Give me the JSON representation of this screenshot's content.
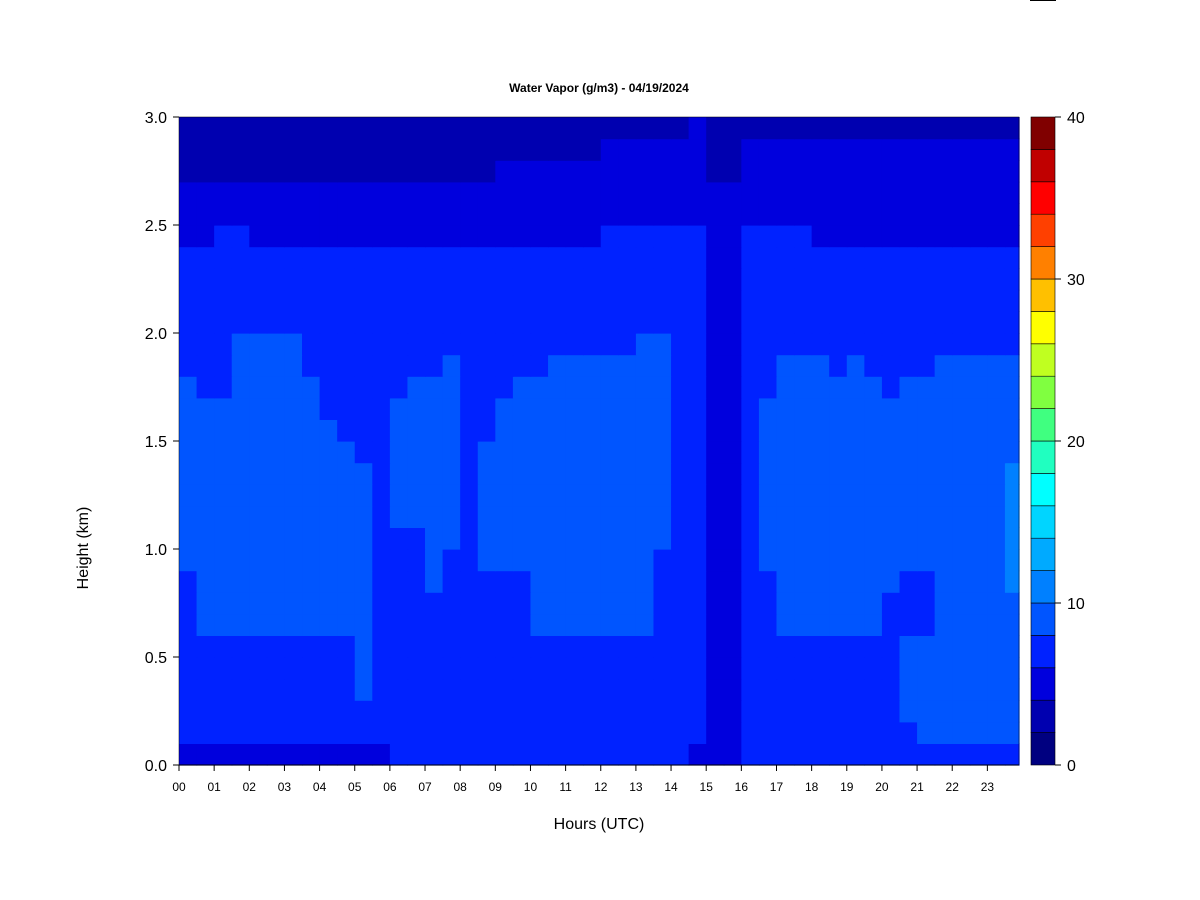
{
  "chart_data": {
    "type": "heatmap",
    "title": "Water Vapor (g/m3) - 04/19/2024",
    "xlabel": "Hours (UTC)",
    "ylabel": "Height (km)",
    "x_ticks": [
      "00",
      "01",
      "02",
      "03",
      "04",
      "05",
      "06",
      "07",
      "08",
      "09",
      "10",
      "11",
      "12",
      "13",
      "14",
      "15",
      "16",
      "17",
      "18",
      "19",
      "20",
      "21",
      "22",
      "23"
    ],
    "xlim": [
      0,
      23.9
    ],
    "y_ticks": [
      "0.0",
      "0.5",
      "1.0",
      "1.5",
      "2.0",
      "2.5",
      "3.0"
    ],
    "ylim": [
      0,
      3.0
    ],
    "colorbar": {
      "min": 0,
      "max": 40,
      "step": 2,
      "tick_labels": [
        "0",
        "10",
        "20",
        "30",
        "40"
      ],
      "colors": [
        "#000080",
        "#0000B0",
        "#0000DD",
        "#0022FF",
        "#0055FF",
        "#0080FF",
        "#00AAFF",
        "#00D5FF",
        "#00FFFF",
        "#20FFC0",
        "#40FF80",
        "#80FF40",
        "#C0FF20",
        "#FFFF00",
        "#FFC000",
        "#FF8000",
        "#FF4000",
        "#FF0000",
        "#C00000",
        "#800000"
      ]
    },
    "grid": false,
    "height_levels_km": [
      0.05,
      0.15,
      0.25,
      0.35,
      0.45,
      0.55,
      0.65,
      0.75,
      0.85,
      0.95,
      1.05,
      1.15,
      1.25,
      1.35,
      1.45,
      1.55,
      1.65,
      1.75,
      1.85,
      1.95,
      2.05,
      2.15,
      2.25,
      2.35,
      2.45,
      2.55,
      2.65,
      2.75,
      2.85,
      2.95
    ],
    "hours_utc": [
      0.25,
      0.75,
      1.25,
      1.75,
      2.25,
      2.75,
      3.25,
      3.75,
      4.25,
      4.75,
      5.25,
      5.75,
      6.25,
      6.75,
      7.25,
      7.75,
      8.25,
      8.75,
      9.25,
      9.75,
      10.25,
      10.75,
      11.25,
      11.75,
      12.25,
      12.75,
      13.25,
      13.75,
      14.25,
      14.75,
      15.25,
      15.75,
      16.25,
      16.75,
      17.25,
      17.75,
      18.25,
      18.75,
      19.25,
      19.75,
      20.25,
      20.75,
      21.25,
      21.75,
      22.25,
      22.75,
      23.25,
      23.75
    ],
    "values_by_height": [
      [
        5,
        5,
        5,
        5,
        5,
        5,
        5,
        5,
        5,
        5,
        5,
        5,
        6,
        6,
        6,
        6,
        6,
        6,
        6,
        6,
        6,
        6,
        6,
        6,
        6,
        6,
        6,
        6,
        6,
        5,
        5,
        5,
        6,
        6,
        6,
        6,
        6,
        6,
        6,
        6,
        6,
        6,
        6,
        6,
        6,
        6,
        6,
        6
      ],
      [
        7,
        7,
        7,
        7,
        7,
        7,
        7,
        7,
        7,
        7,
        7,
        7,
        7,
        7,
        7,
        7,
        7,
        7,
        7,
        7,
        7,
        7,
        7,
        7,
        7,
        7,
        7,
        7,
        7,
        6,
        5,
        5,
        7,
        7,
        7,
        7,
        7,
        7,
        7,
        7,
        7,
        7,
        9,
        9,
        9,
        9,
        9,
        9
      ],
      [
        7,
        7,
        7,
        7,
        7,
        7,
        7,
        7,
        7,
        7,
        7,
        7,
        7,
        7,
        7,
        7,
        7,
        7,
        7,
        7,
        7,
        7,
        7,
        7,
        7,
        7,
        7,
        7,
        7,
        6,
        5,
        5,
        7,
        7,
        7,
        7,
        7,
        7,
        7,
        7,
        7,
        9,
        9,
        9,
        9,
        9,
        9,
        9
      ],
      [
        7,
        7,
        7,
        7,
        7,
        7,
        7,
        7,
        7,
        7,
        9,
        7,
        7,
        7,
        7,
        7,
        7,
        7,
        7,
        7,
        7,
        7,
        7,
        7,
        7,
        7,
        7,
        7,
        7,
        6,
        5,
        5,
        7,
        7,
        7,
        7,
        7,
        7,
        7,
        7,
        7,
        9,
        9,
        9,
        9,
        9,
        9,
        9
      ],
      [
        7,
        7,
        7,
        7,
        7,
        7,
        7,
        7,
        7,
        7,
        9,
        7,
        7,
        7,
        7,
        7,
        7,
        7,
        7,
        7,
        7,
        7,
        7,
        7,
        7,
        7,
        7,
        7,
        7,
        6,
        5,
        5,
        7,
        7,
        7,
        7,
        7,
        7,
        7,
        7,
        7,
        9,
        9,
        9,
        9,
        9,
        9,
        9
      ],
      [
        7,
        7,
        7,
        7,
        7,
        7,
        7,
        7,
        7,
        7,
        9,
        7,
        7,
        7,
        7,
        7,
        7,
        7,
        7,
        7,
        7,
        7,
        7,
        7,
        7,
        7,
        7,
        7,
        7,
        6,
        5,
        5,
        7,
        7,
        7,
        7,
        7,
        7,
        7,
        7,
        7,
        9,
        9,
        9,
        9,
        9,
        9,
        9
      ],
      [
        7,
        9,
        9,
        9,
        9,
        9,
        9,
        9,
        9,
        9,
        9,
        7,
        7,
        7,
        7,
        7,
        7,
        7,
        7,
        7,
        9,
        9,
        9,
        9,
        9,
        9,
        9,
        7,
        7,
        6,
        5,
        5,
        7,
        7,
        9,
        9,
        9,
        9,
        9,
        9,
        7,
        7,
        7,
        9,
        9,
        9,
        9,
        9
      ],
      [
        7,
        9,
        9,
        9,
        9,
        9,
        9,
        9,
        9,
        9,
        9,
        7,
        7,
        7,
        7,
        7,
        7,
        7,
        7,
        7,
        9,
        9,
        9,
        9,
        9,
        9,
        9,
        7,
        7,
        6,
        5,
        5,
        7,
        7,
        9,
        9,
        9,
        9,
        9,
        9,
        7,
        7,
        7,
        9,
        9,
        9,
        9,
        9
      ],
      [
        7,
        9,
        9,
        9,
        9,
        9,
        9,
        9,
        9,
        9,
        9,
        7,
        7,
        7,
        9,
        7,
        7,
        7,
        7,
        7,
        9,
        9,
        9,
        9,
        9,
        9,
        9,
        7,
        7,
        6,
        5,
        5,
        7,
        7,
        9,
        9,
        9,
        9,
        9,
        9,
        9,
        7,
        7,
        9,
        9,
        9,
        9,
        10
      ],
      [
        9,
        9,
        9,
        9,
        9,
        9,
        9,
        9,
        9,
        9,
        9,
        7,
        7,
        7,
        9,
        7,
        7,
        9,
        9,
        9,
        9,
        9,
        9,
        9,
        9,
        9,
        9,
        7,
        7,
        6,
        5,
        5,
        7,
        9,
        9,
        9,
        9,
        9,
        9,
        9,
        9,
        9,
        9,
        9,
        9,
        9,
        9,
        10
      ],
      [
        9,
        9,
        9,
        9,
        9,
        9,
        9,
        9,
        9,
        9,
        9,
        7,
        7,
        7,
        9,
        9,
        7,
        9,
        9,
        9,
        9,
        9,
        9,
        9,
        9,
        9,
        9,
        9,
        7,
        6,
        5,
        5,
        7,
        9,
        9,
        9,
        9,
        9,
        9,
        9,
        9,
        9,
        9,
        9,
        9,
        9,
        9,
        10
      ],
      [
        9,
        9,
        9,
        9,
        9,
        9,
        9,
        9,
        9,
        9,
        9,
        7,
        9,
        9,
        9,
        9,
        7,
        9,
        9,
        9,
        9,
        9,
        9,
        9,
        9,
        9,
        9,
        9,
        7,
        6,
        5,
        5,
        7,
        9,
        9,
        9,
        9,
        9,
        9,
        9,
        9,
        9,
        9,
        9,
        9,
        9,
        9,
        10
      ],
      [
        9,
        9,
        9,
        9,
        9,
        9,
        9,
        9,
        9,
        9,
        9,
        7,
        9,
        9,
        9,
        9,
        7,
        9,
        9,
        9,
        9,
        9,
        9,
        9,
        9,
        9,
        9,
        9,
        7,
        6,
        5,
        5,
        7,
        9,
        9,
        9,
        9,
        9,
        9,
        9,
        9,
        9,
        9,
        9,
        9,
        9,
        9,
        10
      ],
      [
        9,
        9,
        9,
        9,
        9,
        9,
        9,
        9,
        9,
        9,
        9,
        7,
        9,
        9,
        9,
        9,
        7,
        9,
        9,
        9,
        9,
        9,
        9,
        9,
        9,
        9,
        9,
        9,
        7,
        6,
        5,
        5,
        7,
        9,
        9,
        9,
        9,
        9,
        9,
        9,
        9,
        9,
        9,
        9,
        9,
        9,
        9,
        10
      ],
      [
        9,
        9,
        9,
        9,
        9,
        9,
        9,
        9,
        9,
        9,
        7,
        7,
        9,
        9,
        9,
        9,
        7,
        9,
        9,
        9,
        9,
        9,
        9,
        9,
        9,
        9,
        9,
        9,
        7,
        6,
        5,
        5,
        7,
        9,
        9,
        9,
        9,
        9,
        9,
        9,
        9,
        9,
        9,
        9,
        9,
        9,
        9,
        9
      ],
      [
        9,
        9,
        9,
        9,
        9,
        9,
        9,
        9,
        9,
        7,
        7,
        7,
        9,
        9,
        9,
        9,
        7,
        7,
        9,
        9,
        9,
        9,
        9,
        9,
        9,
        9,
        9,
        9,
        7,
        6,
        5,
        5,
        7,
        9,
        9,
        9,
        9,
        9,
        9,
        9,
        9,
        9,
        9,
        9,
        9,
        9,
        9,
        9
      ],
      [
        9,
        9,
        9,
        9,
        9,
        9,
        9,
        9,
        7,
        7,
        7,
        7,
        9,
        9,
        9,
        9,
        7,
        7,
        9,
        9,
        9,
        9,
        9,
        9,
        9,
        9,
        9,
        9,
        7,
        6,
        5,
        5,
        7,
        9,
        9,
        9,
        9,
        9,
        9,
        9,
        9,
        9,
        9,
        9,
        9,
        9,
        9,
        9
      ],
      [
        9,
        7,
        7,
        9,
        9,
        9,
        9,
        9,
        7,
        7,
        7,
        7,
        7,
        9,
        9,
        9,
        7,
        7,
        7,
        9,
        9,
        9,
        9,
        9,
        9,
        9,
        9,
        9,
        7,
        6,
        5,
        5,
        7,
        7,
        9,
        9,
        9,
        9,
        9,
        9,
        7,
        9,
        9,
        9,
        9,
        9,
        9,
        9
      ],
      [
        7,
        7,
        7,
        9,
        9,
        9,
        9,
        7,
        7,
        7,
        7,
        7,
        7,
        7,
        7,
        9,
        7,
        7,
        7,
        7,
        7,
        9,
        9,
        9,
        9,
        9,
        9,
        9,
        7,
        6,
        5,
        5,
        7,
        7,
        9,
        9,
        9,
        7,
        9,
        7,
        7,
        7,
        7,
        9,
        9,
        9,
        9,
        9
      ],
      [
        7,
        7,
        7,
        9,
        9,
        9,
        9,
        7,
        7,
        7,
        7,
        7,
        7,
        7,
        7,
        7,
        7,
        7,
        7,
        7,
        7,
        7,
        7,
        7,
        7,
        7,
        9,
        9,
        7,
        6,
        5,
        5,
        7,
        7,
        7,
        7,
        7,
        7,
        7,
        7,
        7,
        7,
        7,
        7,
        7,
        7,
        7,
        7
      ],
      [
        7,
        7,
        7,
        7,
        7,
        7,
        7,
        7,
        7,
        7,
        7,
        7,
        7,
        7,
        7,
        7,
        7,
        7,
        7,
        7,
        7,
        7,
        7,
        7,
        7,
        7,
        7,
        7,
        7,
        6,
        5,
        5,
        7,
        7,
        7,
        7,
        7,
        7,
        7,
        7,
        7,
        7,
        7,
        7,
        7,
        7,
        7,
        7
      ],
      [
        7,
        7,
        7,
        7,
        7,
        7,
        7,
        7,
        7,
        7,
        7,
        7,
        7,
        7,
        7,
        7,
        7,
        7,
        7,
        7,
        7,
        7,
        7,
        7,
        7,
        7,
        7,
        7,
        7,
        6,
        5,
        5,
        7,
        7,
        7,
        7,
        7,
        7,
        7,
        7,
        7,
        7,
        7,
        7,
        7,
        7,
        7,
        7
      ],
      [
        7,
        7,
        7,
        7,
        7,
        7,
        7,
        7,
        7,
        7,
        7,
        7,
        7,
        7,
        7,
        7,
        7,
        7,
        7,
        7,
        7,
        7,
        7,
        7,
        7,
        7,
        7,
        7,
        7,
        6,
        5,
        5,
        7,
        7,
        7,
        7,
        7,
        7,
        7,
        7,
        7,
        7,
        7,
        7,
        7,
        7,
        7,
        7
      ],
      [
        7,
        7,
        7,
        7,
        7,
        7,
        7,
        7,
        7,
        7,
        7,
        7,
        7,
        7,
        7,
        7,
        7,
        7,
        7,
        7,
        7,
        7,
        7,
        7,
        7,
        7,
        7,
        7,
        7,
        6,
        5,
        5,
        7,
        7,
        7,
        7,
        7,
        7,
        7,
        7,
        7,
        7,
        7,
        7,
        7,
        7,
        7,
        7
      ],
      [
        5,
        5,
        7,
        7,
        5,
        5,
        5,
        5,
        5,
        5,
        5,
        5,
        5,
        5,
        5,
        5,
        5,
        5,
        5,
        5,
        5,
        5,
        5,
        5,
        7,
        7,
        7,
        7,
        7,
        6,
        5,
        5,
        7,
        7,
        7,
        7,
        5,
        5,
        5,
        5,
        5,
        5,
        5,
        5,
        5,
        5,
        5,
        5
      ],
      [
        5,
        5,
        5,
        5,
        5,
        5,
        5,
        5,
        5,
        5,
        5,
        5,
        5,
        5,
        5,
        5,
        5,
        5,
        5,
        5,
        5,
        5,
        5,
        5,
        5,
        5,
        5,
        5,
        5,
        5,
        5,
        5,
        5,
        5,
        5,
        5,
        5,
        5,
        5,
        5,
        5,
        5,
        5,
        5,
        5,
        5,
        5,
        5
      ],
      [
        5,
        5,
        5,
        5,
        5,
        5,
        5,
        5,
        5,
        5,
        5,
        5,
        5,
        5,
        5,
        5,
        5,
        5,
        5,
        5,
        5,
        5,
        5,
        5,
        5,
        5,
        5,
        5,
        5,
        5,
        5,
        5,
        5,
        5,
        5,
        5,
        5,
        5,
        5,
        5,
        5,
        5,
        5,
        5,
        5,
        5,
        5,
        5
      ],
      [
        3,
        3,
        3,
        3,
        3,
        3,
        3,
        3,
        3,
        3,
        3,
        3,
        3,
        3,
        3,
        3,
        3,
        3,
        5,
        5,
        5,
        5,
        5,
        5,
        5,
        5,
        5,
        5,
        5,
        5,
        3,
        3,
        5,
        5,
        5,
        5,
        5,
        5,
        5,
        5,
        5,
        5,
        5,
        5,
        5,
        5,
        5,
        5
      ],
      [
        3,
        3,
        3,
        3,
        3,
        3,
        3,
        3,
        3,
        3,
        3,
        3,
        3,
        3,
        3,
        3,
        3,
        3,
        3,
        3,
        3,
        3,
        3,
        3,
        5,
        5,
        5,
        5,
        5,
        5,
        3,
        3,
        5,
        5,
        5,
        5,
        5,
        5,
        5,
        5,
        5,
        5,
        5,
        5,
        5,
        5,
        5,
        5
      ],
      [
        3,
        3,
        3,
        3,
        3,
        3,
        3,
        3,
        3,
        3,
        3,
        3,
        3,
        3,
        3,
        3,
        3,
        3,
        3,
        3,
        3,
        3,
        3,
        3,
        3,
        3,
        3,
        3,
        3,
        5,
        3,
        3,
        3,
        3,
        3,
        3,
        3,
        3,
        3,
        3,
        3,
        3,
        3,
        3,
        3,
        3,
        3,
        3
      ]
    ]
  }
}
